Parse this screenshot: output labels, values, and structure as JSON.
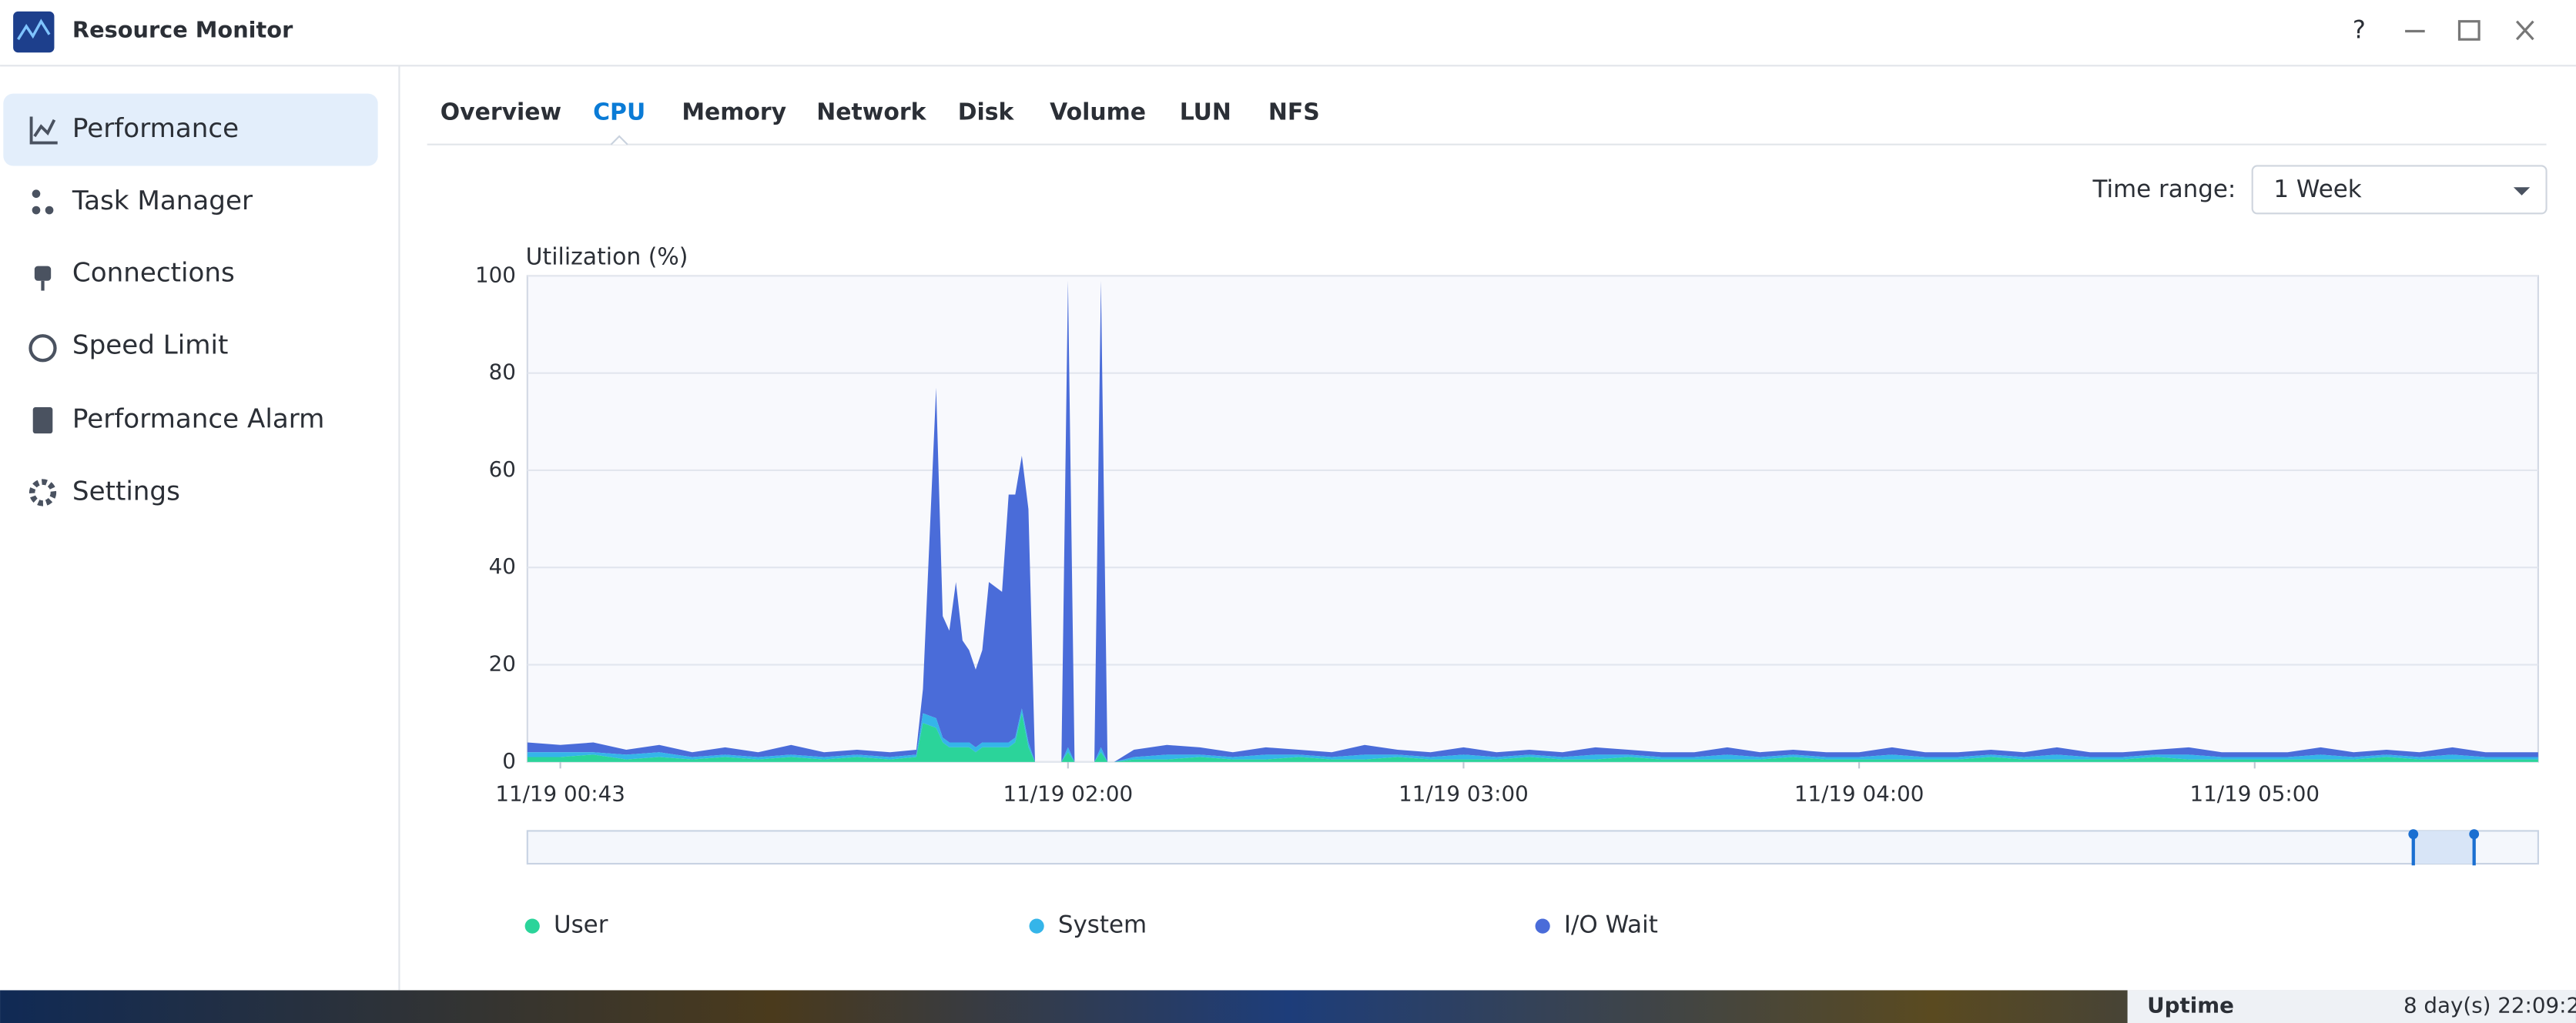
{
  "window": {
    "title": "Resource Monitor",
    "help": "?"
  },
  "sidebar": {
    "items": [
      "Performance",
      "Task Manager",
      "Connections",
      "Speed Limit",
      "Performance Alarm",
      "Settings"
    ],
    "active": "Performance"
  },
  "tabs": {
    "items": [
      "Overview",
      "CPU",
      "Memory",
      "Network",
      "Disk",
      "Volume",
      "LUN",
      "NFS"
    ],
    "active": "CPU"
  },
  "time_range": {
    "label": "Time range:",
    "value": "1 Week"
  },
  "chart_data": {
    "type": "stacked-area",
    "y_label": "Utilization (%)",
    "x": [
      "11/19 00:38",
      "11/19 00:43",
      "11/19 00:48",
      "11/19 00:53",
      "11/19 00:58",
      "11/19 01:03",
      "11/19 01:08",
      "11/19 01:13",
      "11/19 01:18",
      "11/19 01:23",
      "11/19 01:28",
      "11/19 01:33",
      "11/19 01:37",
      "11/19 01:38",
      "11/19 01:40",
      "11/19 01:41",
      "11/19 01:42",
      "11/19 01:43",
      "11/19 01:44",
      "11/19 01:45",
      "11/19 01:46",
      "11/19 01:47",
      "11/19 01:48",
      "11/19 01:49",
      "11/19 01:50",
      "11/19 01:51",
      "11/19 01:52",
      "11/19 01:53",
      "11/19 01:54",
      "11/19 01:55",
      "11/19 01:58",
      "11/19 01:59",
      "11/19 02:00",
      "11/19 02:01",
      "11/19 02:02",
      "11/19 02:04",
      "11/19 02:05",
      "11/19 02:06",
      "11/19 02:07",
      "11/19 02:10",
      "11/19 02:15",
      "11/19 02:20",
      "11/19 02:25",
      "11/19 02:30",
      "11/19 02:35",
      "11/19 02:40",
      "11/19 02:45",
      "11/19 02:50",
      "11/19 02:55",
      "11/19 03:00",
      "11/19 03:05",
      "11/19 03:10",
      "11/19 03:15",
      "11/19 03:20",
      "11/19 03:25",
      "11/19 03:30",
      "11/19 03:35",
      "11/19 03:40",
      "11/19 03:45",
      "11/19 03:50",
      "11/19 03:55",
      "11/19 04:00",
      "11/19 04:05",
      "11/19 04:10",
      "11/19 04:15",
      "11/19 04:20",
      "11/19 04:25",
      "11/19 04:30",
      "11/19 04:35",
      "11/19 04:40",
      "11/19 04:45",
      "11/19 04:50",
      "11/19 04:55",
      "11/19 05:00",
      "11/19 05:05",
      "11/19 05:10",
      "11/19 05:15",
      "11/19 05:20",
      "11/19 05:25",
      "11/19 05:30",
      "11/19 05:35",
      "11/19 05:40",
      "11/19 05:43"
    ],
    "series": [
      {
        "name": "User",
        "color": "#2bd49a",
        "values": [
          1,
          1,
          1.5,
          0.5,
          1,
          0.5,
          1,
          0.5,
          1,
          0.5,
          1,
          0.5,
          1,
          8,
          7,
          4,
          3,
          3,
          3,
          3,
          2,
          3,
          3,
          3,
          3,
          3,
          4,
          10,
          3,
          0,
          0,
          0,
          2,
          0,
          0,
          0,
          2,
          0,
          0,
          0.5,
          0.5,
          1,
          0.5,
          0.5,
          1,
          0.5,
          0.5,
          1,
          0.5,
          0.5,
          0.5,
          1,
          0.5,
          0.5,
          1,
          0.5,
          0.5,
          0.5,
          0.5,
          1,
          0.5,
          0.5,
          0.5,
          0.5,
          0.5,
          1,
          0.5,
          0.5,
          0.5,
          0.5,
          1,
          0.5,
          0.5,
          0.5,
          0.5,
          0.5,
          0.5,
          1,
          0.5,
          0.5,
          0.5,
          0.5,
          0.5
        ]
      },
      {
        "name": "System",
        "color": "#35b5e9",
        "values": [
          1,
          1,
          0.5,
          1,
          1,
          0.5,
          0.5,
          0.5,
          0.5,
          0.5,
          0.5,
          0.5,
          0.5,
          2,
          2,
          1,
          1,
          1,
          1,
          1,
          1,
          1,
          1,
          1,
          1,
          1,
          1,
          1,
          1,
          0,
          0,
          0,
          1,
          0,
          0,
          0,
          1,
          0,
          0,
          0.5,
          1,
          0.5,
          0.5,
          1,
          0.5,
          0.5,
          1,
          0.5,
          0.5,
          1,
          0.5,
          0.5,
          0.5,
          1,
          0.5,
          0.5,
          0.5,
          1,
          0.5,
          0.5,
          0.5,
          0.5,
          1,
          0.5,
          0.5,
          0.5,
          0.5,
          1,
          0.5,
          0.5,
          0.5,
          1,
          0.5,
          0.5,
          0.5,
          1,
          0.5,
          0.5,
          0.5,
          1,
          0.5,
          0.5,
          0.5
        ]
      },
      {
        "name": "I/O Wait",
        "color": "#4a6cd9",
        "values": [
          2,
          1.5,
          2,
          1,
          1.5,
          1,
          1.5,
          1,
          2,
          1,
          1,
          1,
          1,
          5,
          68,
          25,
          23,
          33,
          21,
          19,
          16,
          19,
          33,
          32,
          31,
          51,
          50,
          52,
          48,
          0,
          0,
          0,
          96,
          0,
          0,
          0,
          96,
          0,
          0,
          1.5,
          2,
          1.5,
          1,
          1.5,
          1,
          1,
          2,
          1,
          1,
          1.5,
          1,
          1,
          1,
          1.5,
          1,
          1,
          1,
          1.5,
          1,
          1,
          1,
          1,
          1.5,
          1,
          1,
          1,
          1,
          1.5,
          1,
          1,
          1,
          1.5,
          1,
          1,
          1,
          1.5,
          1,
          1,
          1,
          1.5,
          1,
          1,
          1
        ]
      }
    ],
    "xlim": [
      "11/19 00:38",
      "11/19 05:43"
    ],
    "xticks": [
      "11/19 00:43",
      "11/19 02:00",
      "11/19 03:00",
      "11/19 04:00",
      "11/19 05:00"
    ],
    "ylim": [
      0,
      100
    ],
    "yticks": [
      0,
      20,
      40,
      60,
      80,
      100
    ],
    "grid": true
  },
  "widget": {
    "label": "Uptime",
    "value": "8 day(s) 22:09:2"
  }
}
